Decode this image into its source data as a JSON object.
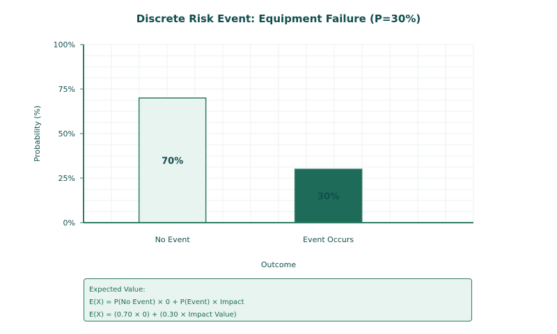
{
  "chart_data": {
    "type": "bar",
    "title": "Discrete Risk Event: Equipment Failure (P=30%)",
    "xlabel": "Outcome",
    "ylabel": "Probability (%)",
    "categories": [
      "No Event",
      "Event Occurs"
    ],
    "values": [
      70,
      30
    ],
    "data_labels": [
      "70%",
      "30%"
    ],
    "ylim": [
      0,
      100
    ],
    "yticks": [
      0,
      25,
      50,
      75,
      100
    ],
    "ytick_labels": [
      "0%",
      "25%",
      "50%",
      "75%",
      "100%"
    ],
    "grid": true,
    "colors": {
      "bar_fills": [
        "#e8f4ef",
        "#1e6b5a"
      ],
      "bar_stroke": "#2e7a63",
      "axis": "#2e7a63",
      "text": "#124d4d"
    }
  },
  "expected_value": {
    "heading": "Expected Value:",
    "formula": "E(X) = P(No Event) × 0 + P(Event) × Impact",
    "substitution": "E(X) = (0.70 × 0) + (0.30 × Impact Value)"
  }
}
